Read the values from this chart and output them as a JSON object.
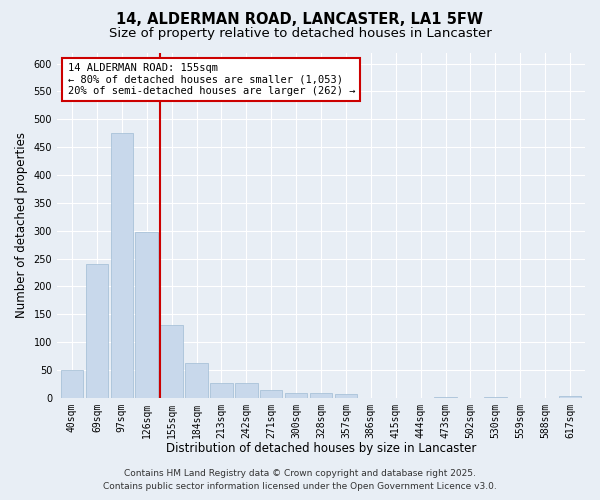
{
  "title": "14, ALDERMAN ROAD, LANCASTER, LA1 5FW",
  "subtitle": "Size of property relative to detached houses in Lancaster",
  "xlabel": "Distribution of detached houses by size in Lancaster",
  "ylabel": "Number of detached properties",
  "categories": [
    "40sqm",
    "69sqm",
    "97sqm",
    "126sqm",
    "155sqm",
    "184sqm",
    "213sqm",
    "242sqm",
    "271sqm",
    "300sqm",
    "328sqm",
    "357sqm",
    "386sqm",
    "415sqm",
    "444sqm",
    "473sqm",
    "502sqm",
    "530sqm",
    "559sqm",
    "588sqm",
    "617sqm"
  ],
  "values": [
    50,
    240,
    475,
    298,
    130,
    63,
    27,
    27,
    14,
    9,
    9,
    7,
    0,
    0,
    0,
    2,
    0,
    2,
    0,
    0,
    3
  ],
  "bar_color": "#c8d8eb",
  "bar_edge_color": "#a0bcd4",
  "red_line_color": "#cc0000",
  "red_line_index": 4,
  "annotation_text_line1": "14 ALDERMAN ROAD: 155sqm",
  "annotation_text_line2": "← 80% of detached houses are smaller (1,053)",
  "annotation_text_line3": "20% of semi-detached houses are larger (262) →",
  "ylim": [
    0,
    620
  ],
  "yticks": [
    0,
    50,
    100,
    150,
    200,
    250,
    300,
    350,
    400,
    450,
    500,
    550,
    600
  ],
  "bg_color": "#e8eef5",
  "plot_bg_color": "#e8eef5",
  "grid_color": "#ffffff",
  "footer_line1": "Contains HM Land Registry data © Crown copyright and database right 2025.",
  "footer_line2": "Contains public sector information licensed under the Open Government Licence v3.0.",
  "title_fontsize": 10.5,
  "subtitle_fontsize": 9.5,
  "axis_label_fontsize": 8.5,
  "tick_fontsize": 7,
  "annotation_fontsize": 7.5,
  "footer_fontsize": 6.5
}
